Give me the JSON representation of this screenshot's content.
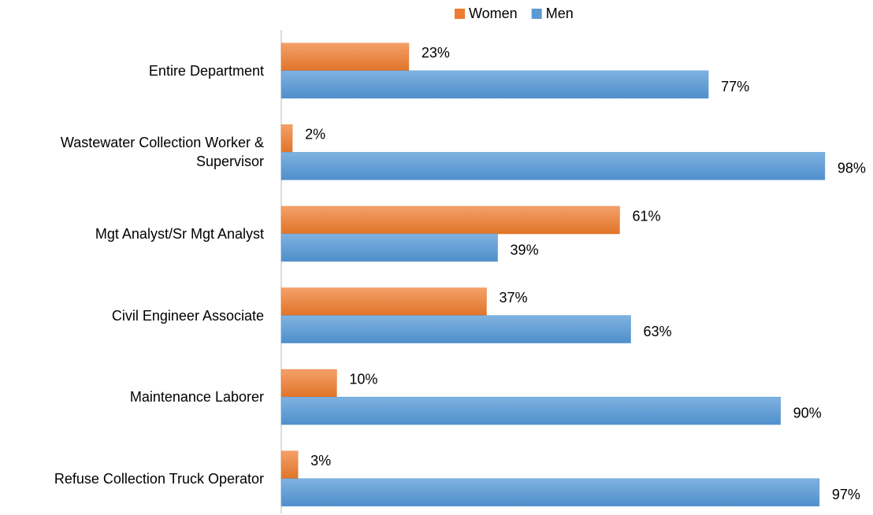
{
  "chart_data": {
    "type": "bar",
    "orientation": "horizontal",
    "categories": [
      "Entire Department",
      "Wastewater Collection Worker & Supervisor",
      "Mgt Analyst/Sr Mgt Analyst",
      "Civil Engineer Associate",
      "Maintenance Laborer",
      "Refuse Collection Truck Operator"
    ],
    "series": [
      {
        "name": "Women",
        "color": "#ed7d31",
        "values": [
          23,
          2,
          61,
          37,
          10,
          3
        ],
        "value_labels": [
          "23%",
          "2%",
          "61%",
          "37%",
          "10%",
          "3%"
        ]
      },
      {
        "name": "Men",
        "color": "#5b9bd5",
        "values": [
          77,
          98,
          39,
          63,
          90,
          97
        ],
        "value_labels": [
          "77%",
          "98%",
          "39%",
          "63%",
          "90%",
          "97%"
        ]
      }
    ],
    "xlim": [
      0,
      100
    ],
    "legend": "top"
  }
}
